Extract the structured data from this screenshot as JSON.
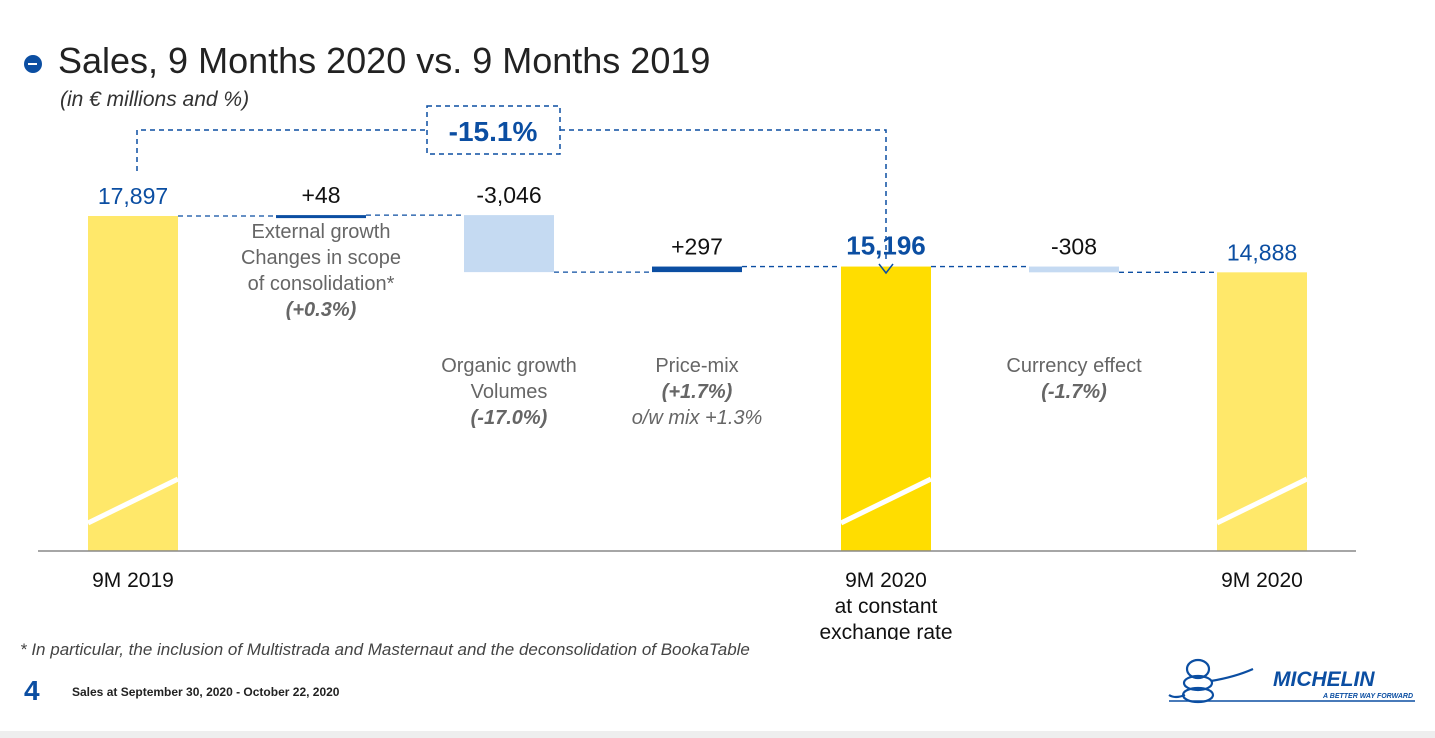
{
  "header": {
    "title": "Sales, 9 Months 2020 vs. 9 Months 2019",
    "subtitle": "(in € millions and %)"
  },
  "chart_data": {
    "type": "bar",
    "variant": "waterfall",
    "categories": [
      "9M 2019",
      "Changes in scope of consolidation",
      "Volumes",
      "Price-mix",
      "9M 2020 at constant exchange rate",
      "Currency effect",
      "9M 2020"
    ],
    "values": [
      17897,
      48,
      -3046,
      297,
      15196,
      -308,
      14888
    ],
    "value_labels": [
      "17,897",
      "+48",
      "-3,046",
      "+297",
      "15,196",
      "-308",
      "14,888"
    ],
    "x_labels": [
      [
        "9M 2019"
      ],
      [],
      [],
      [],
      [
        "9M 2020",
        "at constant",
        "exchange rate"
      ],
      [],
      [
        "9M 2020"
      ]
    ],
    "bar_notes": [
      [],
      [
        "External growth",
        "Changes in scope",
        "of consolidation*",
        "(+0.3%)"
      ],
      [
        "Organic growth",
        "Volumes",
        "(-17.0%)"
      ],
      [
        "Price-mix",
        "(+1.7%)",
        "o/w mix +1.3%"
      ],
      [],
      [
        "Currency effect",
        "(-1.7%)"
      ],
      []
    ],
    "overall_change": "-15.1%",
    "ylim": [
      0,
      17897
    ],
    "colors": {
      "total": "#ffe86a",
      "highlight": "#ffdd00",
      "negative": "#c5daf2",
      "positive": "#0b4ea2",
      "label_blue": "#0b4ea2"
    }
  },
  "footer": {
    "footnote": "* In particular, the inclusion of Multistrada and Masternaut and the deconsolidation of BookaTable",
    "page_number": "4",
    "text": "Sales at September 30, 2020 - October 22, 2020"
  },
  "logo": {
    "brand": "MICHELIN",
    "tagline": "A BETTER WAY FORWARD"
  }
}
